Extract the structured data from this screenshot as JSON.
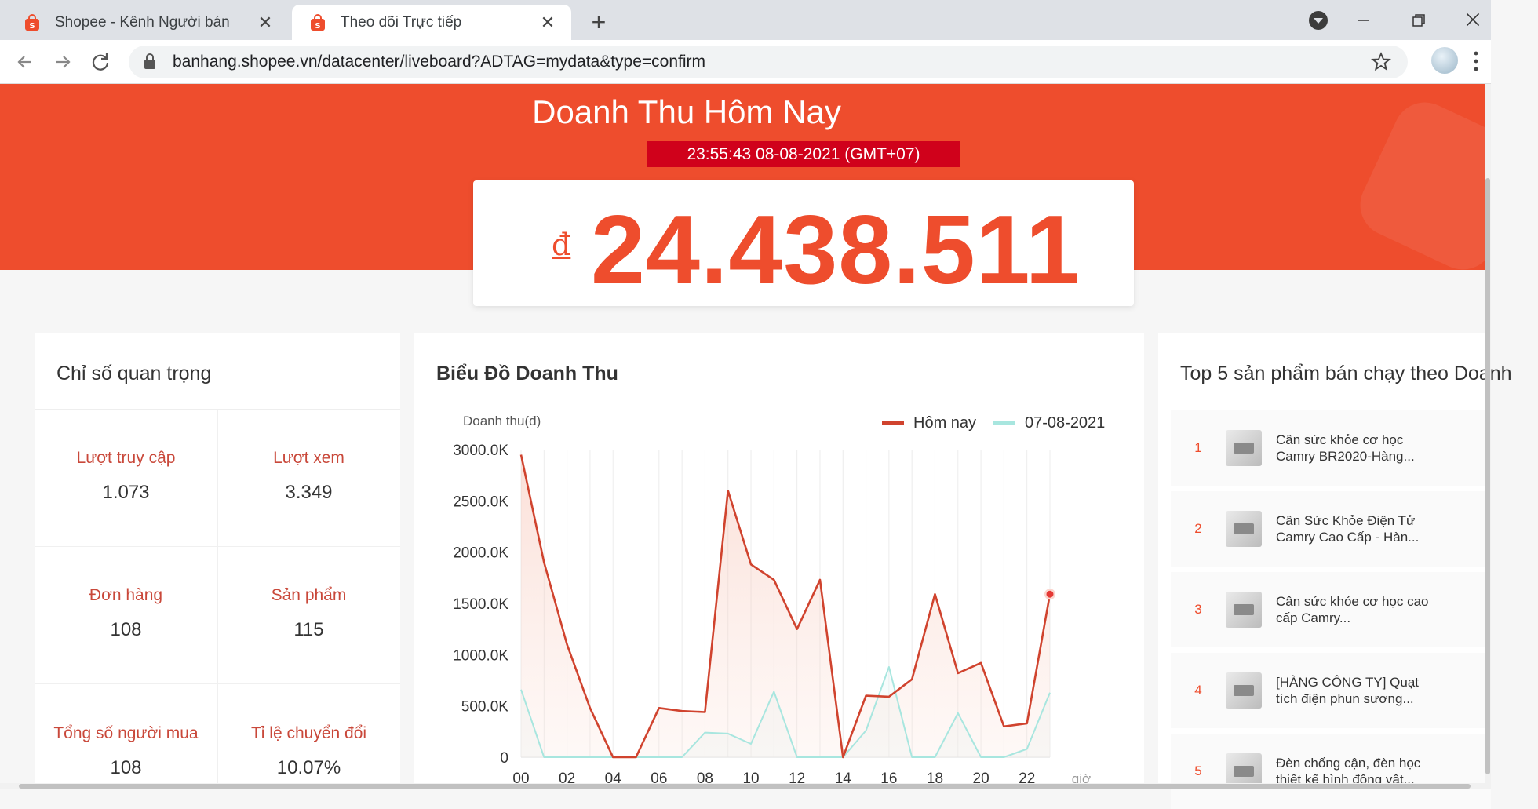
{
  "browser": {
    "tabs": [
      {
        "title": "Shopee - Kênh Người bán",
        "active": false
      },
      {
        "title": "Theo dõi Trực tiếp",
        "active": true
      }
    ],
    "close_glyph": "✕",
    "newtab_glyph": "+",
    "url": "banhang.shopee.vn/datacenter/liveboard?ADTAG=mydata&type=confirm",
    "icons": {
      "back": "back-arrow-icon",
      "forward": "forward-arrow-icon",
      "reload": "reload-icon",
      "lock": "lock-icon",
      "bookmark": "star-icon",
      "menu": "kebab-menu-icon"
    }
  },
  "hero": {
    "title": "Doanh Thu Hôm Nay",
    "timestamp": "23:55:43 08-08-2021 (GMT+07)",
    "currency": "đ",
    "revenue": "24.438.511"
  },
  "metrics": {
    "title": "Chỉ số quan trọng",
    "items": [
      {
        "label": "Lượt truy cập",
        "value": "1.073"
      },
      {
        "label": "Lượt xem",
        "value": "3.349"
      },
      {
        "label": "Đơn hàng",
        "value": "108"
      },
      {
        "label": "Sản phẩm",
        "value": "115"
      },
      {
        "label": "Tổng số người mua",
        "value": "108"
      },
      {
        "label": "Tỉ lệ chuyển đổi",
        "value": "10.07%"
      }
    ]
  },
  "chart_section": {
    "title": "Biểu Đồ Doanh Thu"
  },
  "chart_data": {
    "type": "line",
    "ylabel": "Doanh thu(đ)",
    "xlabel": "giờ",
    "ylim": [
      0,
      3000
    ],
    "yticks": [
      "3000.0K",
      "2500.0K",
      "2000.0K",
      "1500.0K",
      "1000.0K",
      "500.0K",
      "0"
    ],
    "xticks": [
      "00",
      "02",
      "04",
      "06",
      "08",
      "10",
      "12",
      "14",
      "16",
      "18",
      "20",
      "22"
    ],
    "x": [
      0,
      1,
      2,
      3,
      4,
      5,
      6,
      7,
      8,
      9,
      10,
      11,
      12,
      13,
      14,
      15,
      16,
      17,
      18,
      19,
      20,
      21,
      22,
      23
    ],
    "legend_position": "top-right",
    "grid": true,
    "series": [
      {
        "name": "Hôm nay",
        "color": "#d0432e",
        "values": [
          2950,
          1900,
          1100,
          480,
          0,
          0,
          480,
          450,
          440,
          2600,
          1880,
          1730,
          1250,
          1730,
          0,
          600,
          590,
          760,
          1590,
          820,
          920,
          300,
          330,
          1590
        ]
      },
      {
        "name": "07-08-2021",
        "color": "#a8e6df",
        "values": [
          660,
          0,
          0,
          0,
          0,
          0,
          0,
          0,
          240,
          230,
          130,
          640,
          0,
          0,
          0,
          260,
          880,
          0,
          0,
          430,
          0,
          0,
          80,
          630
        ]
      }
    ]
  },
  "top5": {
    "title": "Top 5 sản phẩm bán chạy theo Doanh",
    "items": [
      {
        "rank": "1",
        "name": "Cân sức khỏe cơ học Camry BR2020-Hàng..."
      },
      {
        "rank": "2",
        "name": "Cân Sức Khỏe Điện Tử Camry Cao Cấp - Hàn..."
      },
      {
        "rank": "3",
        "name": "Cân sức khỏe cơ học cao cấp Camry..."
      },
      {
        "rank": "4",
        "name": "[HÀNG CÔNG TY] Quạt tích điện phun sương..."
      },
      {
        "rank": "5",
        "name": "Đèn chống cận, đèn học thiết kế hình động vật..."
      }
    ]
  },
  "colors": {
    "brand": "#ee4d2d",
    "brand_dark": "#d0011b",
    "rank_accent": "#ee4d2d"
  }
}
